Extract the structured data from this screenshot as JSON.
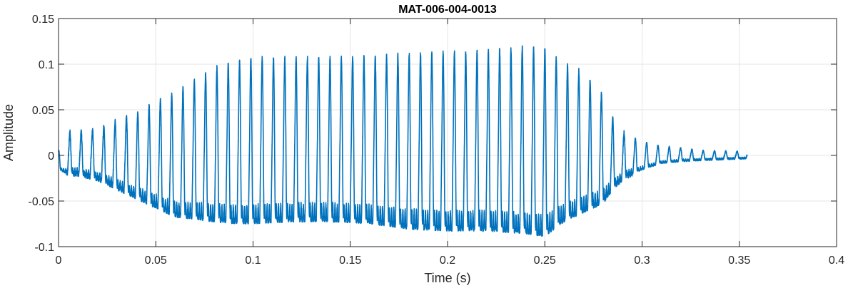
{
  "chart_data": {
    "type": "line",
    "title": "MAT-006-004-0013",
    "xlabel": "Time (s)",
    "ylabel": "Amplitude",
    "xlim": [
      0,
      0.4
    ],
    "ylim": [
      -0.1,
      0.15
    ],
    "xticks": [
      0,
      0.05,
      0.1,
      0.15,
      0.2,
      0.25,
      0.3,
      0.35,
      0.4
    ],
    "xtick_labels": [
      "0",
      "0.05",
      "0.1",
      "0.15",
      "0.2",
      "0.25",
      "0.3",
      "0.35",
      "0.4"
    ],
    "yticks": [
      -0.1,
      -0.05,
      0,
      0.05,
      0.1,
      0.15
    ],
    "ytick_labels": [
      "-0.1",
      "-0.05",
      "0",
      "0.05",
      "0.1",
      "0.15"
    ],
    "grid": true,
    "line_color": "#0072BD",
    "series": [
      {
        "signal_end": 0.354,
        "fundamental_hz": 172,
        "envelope": {
          "t": [
            0,
            0.005,
            0.01,
            0.02,
            0.03,
            0.04,
            0.05,
            0.06,
            0.07,
            0.08,
            0.09,
            0.1,
            0.12,
            0.14,
            0.16,
            0.18,
            0.2,
            0.22,
            0.24,
            0.25,
            0.26,
            0.27,
            0.28,
            0.285,
            0.29,
            0.3,
            0.31,
            0.32,
            0.33,
            0.354
          ],
          "max": [
            0.005,
            0.025,
            0.025,
            0.028,
            0.038,
            0.045,
            0.058,
            0.068,
            0.082,
            0.095,
            0.102,
            0.106,
            0.106,
            0.106,
            0.108,
            0.11,
            0.112,
            0.113,
            0.118,
            0.116,
            0.1,
            0.09,
            0.065,
            0.04,
            0.025,
            0.015,
            0.01,
            0.008,
            0.005,
            0.004
          ],
          "min": [
            -0.015,
            -0.02,
            -0.02,
            -0.025,
            -0.035,
            -0.045,
            -0.055,
            -0.065,
            -0.067,
            -0.07,
            -0.072,
            -0.072,
            -0.07,
            -0.07,
            -0.072,
            -0.078,
            -0.08,
            -0.08,
            -0.083,
            -0.086,
            -0.07,
            -0.06,
            -0.05,
            -0.035,
            -0.025,
            -0.015,
            -0.008,
            -0.006,
            -0.005,
            -0.003
          ]
        }
      }
    ]
  }
}
